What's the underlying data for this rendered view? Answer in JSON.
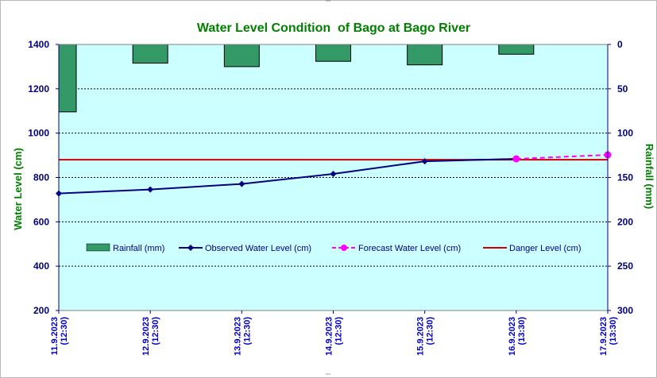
{
  "chart_data": {
    "type": "bar+line",
    "title": "Water Level Condition  of Bago at Bago River",
    "ylabel": "Water Level (cm)",
    "y2label": "Rainfall (mm)",
    "ylim": [
      200,
      1400
    ],
    "y_ticks": [
      "1400",
      "1200",
      "1000",
      "800",
      "600",
      "400",
      "200"
    ],
    "y2lim": [
      0,
      300
    ],
    "y2_ticks": [
      "0",
      "50",
      "100",
      "150",
      "200",
      "250",
      "300"
    ],
    "categories": [
      {
        "date": "11.9.2023",
        "time": "(12:30)"
      },
      {
        "date": "12.9.2023",
        "time": "(12:30)"
      },
      {
        "date": "13.9.2023",
        "time": "(12:30)"
      },
      {
        "date": "14.9.2023",
        "time": "(12:30)"
      },
      {
        "date": "15.9.2023",
        "time": "(12:30)"
      },
      {
        "date": "16.9.2023",
        "time": "(13:30)"
      },
      {
        "date": "17.9.2023",
        "time": "(13:30)"
      }
    ],
    "series": [
      {
        "name": "Rainfall (mm)",
        "kind": "bar",
        "axis": "right",
        "color": "#339966",
        "values": [
          76,
          21,
          25,
          19,
          23,
          11,
          null
        ]
      },
      {
        "name": "Observed Water Level (cm)",
        "kind": "line",
        "axis": "left",
        "color": "#000080",
        "values": [
          728,
          746,
          771,
          816,
          873,
          884,
          null
        ]
      },
      {
        "name": "Forecast Water Level (cm)",
        "kind": "line-dashed",
        "axis": "left",
        "color": "#ff00ff",
        "values": [
          null,
          null,
          null,
          null,
          null,
          884,
          902
        ]
      },
      {
        "name": "Danger Level (cm)",
        "kind": "hline",
        "axis": "left",
        "color": "#cc0000",
        "value": 880
      }
    ],
    "grid": true,
    "legend_position": "center"
  },
  "colors": {
    "plot_background": "#ccffff",
    "gridline": "#000000",
    "axis_tick_text": "#000080",
    "title_text": "#008000"
  }
}
